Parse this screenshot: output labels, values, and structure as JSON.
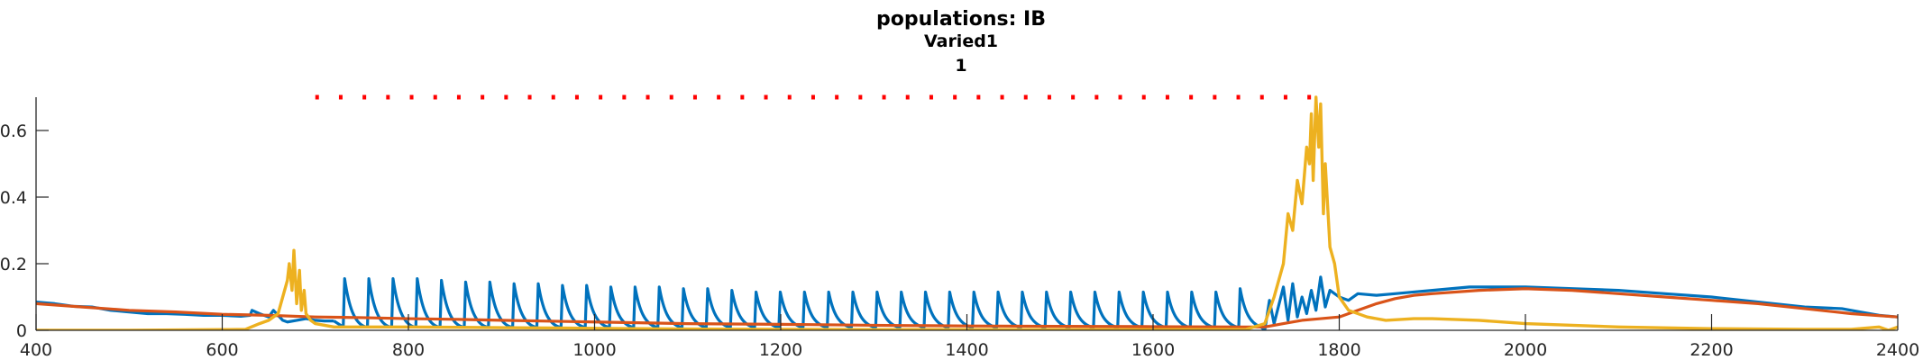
{
  "chart_data": {
    "type": "line",
    "title": "populations: IB",
    "subtitle_lines": [
      "Varied1",
      "1"
    ],
    "xlabel": "",
    "ylabel": "",
    "xlim": [
      400,
      2400
    ],
    "ylim": [
      0,
      0.7
    ],
    "x_ticks": [
      400,
      600,
      800,
      1000,
      1200,
      1400,
      1600,
      1800,
      2000,
      2200,
      2400
    ],
    "x_tick_labels": [
      "400",
      "600",
      "800",
      "1000",
      "1200",
      "1400",
      "1600",
      "1800",
      "2000",
      "2200",
      "2400"
    ],
    "y_ticks": [
      0,
      0.2,
      0.4,
      0.6
    ],
    "y_tick_labels": [
      "0",
      "0.2",
      "0.4",
      "0.6"
    ],
    "grid": false,
    "legend": "none",
    "series": [
      {
        "color": "#0072BD",
        "x": [
          400,
          420,
          440,
          460,
          480,
          500,
          520,
          540,
          560,
          580,
          600,
          620,
          630,
          632,
          640,
          650,
          655,
          660,
          665,
          670,
          680,
          690,
          700,
          710,
          720,
          1720,
          1725,
          1730,
          1740,
          1745,
          1750,
          1755,
          1760,
          1765,
          1770,
          1775,
          1780,
          1785,
          1790,
          1800,
          1810,
          1820,
          1840,
          1860,
          1880,
          1900,
          1920,
          1940,
          1960,
          1980,
          2000,
          2050,
          2100,
          2150,
          2200,
          2250,
          2300,
          2340,
          2360,
          2380,
          2400
        ],
        "y": [
          0.085,
          0.08,
          0.072,
          0.07,
          0.06,
          0.055,
          0.05,
          0.05,
          0.048,
          0.045,
          0.045,
          0.042,
          0.045,
          0.06,
          0.05,
          0.04,
          0.06,
          0.045,
          0.03,
          0.025,
          0.03,
          0.035,
          0.03,
          0.028,
          0.028,
          0.0,
          0.09,
          0.02,
          0.13,
          0.03,
          0.14,
          0.04,
          0.1,
          0.05,
          0.12,
          0.06,
          0.16,
          0.07,
          0.12,
          0.1,
          0.09,
          0.11,
          0.105,
          0.11,
          0.115,
          0.12,
          0.125,
          0.13,
          0.13,
          0.13,
          0.13,
          0.125,
          0.12,
          0.11,
          0.1,
          0.085,
          0.07,
          0.065,
          0.055,
          0.045,
          0.04
        ],
        "spikes": [
          730,
          756,
          782,
          808,
          834,
          860,
          886,
          912,
          938,
          964,
          990,
          1016,
          1042,
          1068,
          1094,
          1120,
          1146,
          1172,
          1198,
          1224,
          1250,
          1276,
          1302,
          1328,
          1354,
          1380,
          1406,
          1432,
          1458,
          1484,
          1510,
          1536,
          1562,
          1588,
          1614,
          1640,
          1666,
          1692
        ],
        "spike_peaks": [
          0.155,
          0.155,
          0.155,
          0.155,
          0.15,
          0.145,
          0.145,
          0.14,
          0.14,
          0.135,
          0.135,
          0.13,
          0.13,
          0.13,
          0.125,
          0.125,
          0.12,
          0.115,
          0.115,
          0.115,
          0.115,
          0.115,
          0.115,
          0.115,
          0.115,
          0.115,
          0.115,
          0.115,
          0.115,
          0.115,
          0.115,
          0.115,
          0.115,
          0.115,
          0.115,
          0.115,
          0.115,
          0.125
        ],
        "spike_base": 0.01
      },
      {
        "color": "#D95319",
        "x": [
          400,
          450,
          500,
          550,
          600,
          650,
          700,
          750,
          800,
          850,
          900,
          1000,
          1100,
          1200,
          1300,
          1400,
          1500,
          1600,
          1700,
          1720,
          1740,
          1760,
          1780,
          1800,
          1820,
          1840,
          1860,
          1880,
          1900,
          1950,
          2000,
          2050,
          2100,
          2150,
          2200,
          2250,
          2300,
          2350,
          2400
        ],
        "y": [
          0.08,
          0.07,
          0.06,
          0.055,
          0.048,
          0.045,
          0.04,
          0.038,
          0.035,
          0.033,
          0.03,
          0.025,
          0.02,
          0.018,
          0.015,
          0.013,
          0.012,
          0.011,
          0.01,
          0.01,
          0.02,
          0.03,
          0.035,
          0.04,
          0.06,
          0.08,
          0.095,
          0.105,
          0.11,
          0.12,
          0.125,
          0.12,
          0.11,
          0.1,
          0.09,
          0.08,
          0.065,
          0.05,
          0.04
        ]
      },
      {
        "color": "#EDB120",
        "x": [
          400,
          500,
          600,
          625,
          640,
          650,
          660,
          665,
          670,
          672,
          675,
          677,
          680,
          683,
          685,
          688,
          690,
          695,
          700,
          720,
          760,
          800,
          900,
          1000,
          1100,
          1200,
          1300,
          1400,
          1500,
          1600,
          1700,
          1720,
          1730,
          1740,
          1745,
          1750,
          1755,
          1760,
          1765,
          1768,
          1770,
          1772,
          1775,
          1778,
          1780,
          1783,
          1785,
          1790,
          1795,
          1800,
          1810,
          1830,
          1850,
          1880,
          1900,
          1950,
          2000,
          2100,
          2200,
          2300,
          2350,
          2380,
          2390,
          2400
        ],
        "y": [
          0.0,
          0.0,
          0.002,
          0.003,
          0.02,
          0.03,
          0.05,
          0.1,
          0.15,
          0.2,
          0.12,
          0.24,
          0.08,
          0.18,
          0.06,
          0.12,
          0.05,
          0.03,
          0.02,
          0.01,
          0.01,
          0.01,
          0.008,
          0.006,
          0.004,
          0.003,
          0.002,
          0.002,
          0.002,
          0.002,
          0.003,
          0.02,
          0.1,
          0.2,
          0.35,
          0.3,
          0.45,
          0.38,
          0.55,
          0.5,
          0.65,
          0.45,
          0.7,
          0.55,
          0.68,
          0.35,
          0.5,
          0.25,
          0.2,
          0.1,
          0.06,
          0.04,
          0.03,
          0.035,
          0.035,
          0.03,
          0.02,
          0.01,
          0.005,
          0.003,
          0.003,
          0.01,
          0.0,
          0.01
        ]
      }
    ],
    "marker_line": {
      "color": "#FF0000",
      "style": "dotted",
      "y": 0.7,
      "x_start": 700,
      "x_end": 1780
    }
  }
}
